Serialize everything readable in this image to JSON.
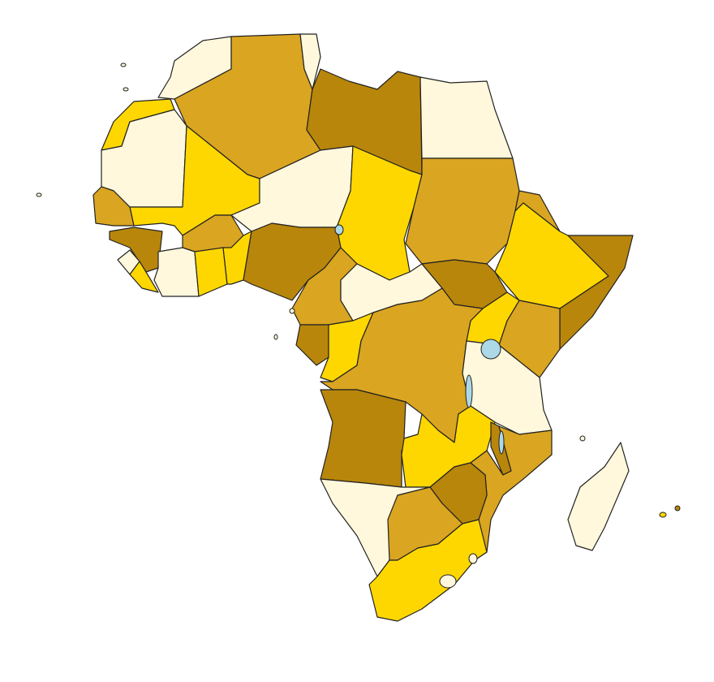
{
  "map": {
    "palette": {
      "cream": "#FFF8DC",
      "gold": "#FFD700",
      "goldenrod": "#DAA520",
      "dark_goldenrod": "#B8860B",
      "water": "#ADD8E6",
      "background": "#FFFFFF",
      "border": "#222222"
    }
  }
}
